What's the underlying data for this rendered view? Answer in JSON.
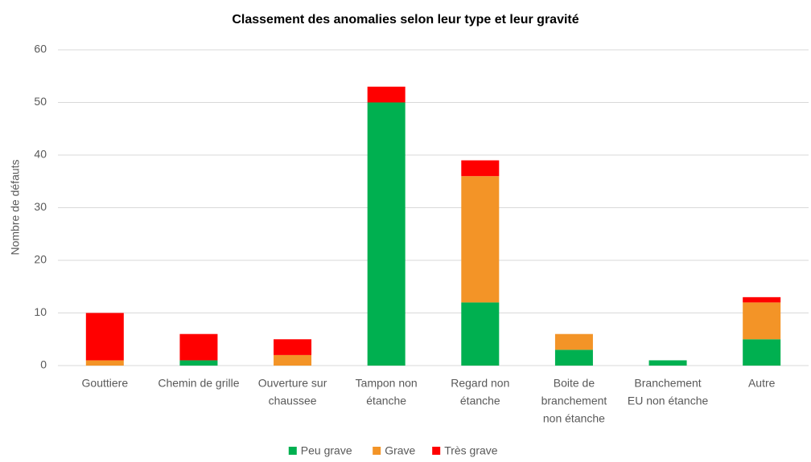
{
  "chart_data": {
    "type": "stacked_bar",
    "title": "Classement des anomalies selon leur type et leur gravité",
    "y_label": "Nombre de défauts",
    "categories": [
      [
        "Gouttiere"
      ],
      [
        "Chemin de grille"
      ],
      [
        "Ouverture sur",
        "chaussee"
      ],
      [
        "Tampon non",
        "étanche"
      ],
      [
        "Regard non",
        "étanche"
      ],
      [
        "Boite de",
        "branchement",
        "non étanche"
      ],
      [
        "Branchement",
        "EU non étanche"
      ],
      [
        "Autre"
      ]
    ],
    "series": [
      {
        "name": "Peu grave",
        "color": "#00b050",
        "values": [
          0,
          1,
          0,
          50,
          12,
          3,
          1,
          5
        ]
      },
      {
        "name": "Grave",
        "color": "#f39427",
        "values": [
          1,
          0,
          2,
          0,
          24,
          3,
          0,
          7
        ]
      },
      {
        "name": "Très grave",
        "color": "#ff0000",
        "values": [
          9,
          5,
          3,
          3,
          3,
          0,
          0,
          1
        ]
      }
    ],
    "ylim": [
      0,
      60
    ],
    "yticks": [
      0,
      10,
      20,
      30,
      40,
      50,
      60
    ],
    "grid": true,
    "legend": "bottom"
  }
}
